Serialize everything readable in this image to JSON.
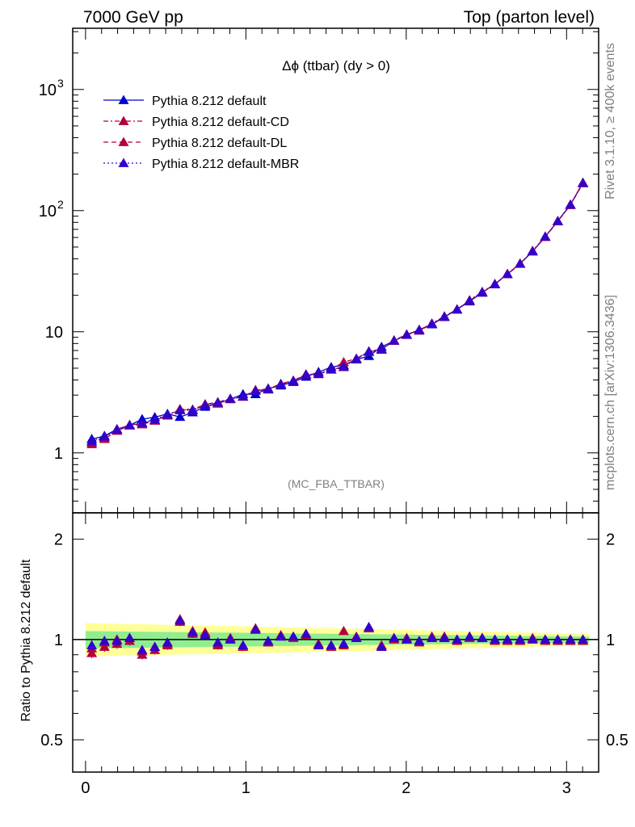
{
  "header": {
    "left": "7000 GeV pp",
    "right": "Top (parton level)"
  },
  "side_labels": {
    "rivet": "Rivet 3.1.10, ≥ 400k events",
    "mcplots": "mcplots.cern.ch [arXiv:1306.3436]"
  },
  "chart_data": [
    {
      "type": "line",
      "title": "Δϕ (ttbar) (dy > 0)",
      "watermark": "(MC_FBA_TTBAR)",
      "xlabel": "",
      "ylabel": "",
      "yscale": "log",
      "xlim": [
        -0.08,
        3.2
      ],
      "ylim": [
        0.32,
        3200
      ],
      "x_ticks": [
        "0",
        "1",
        "2",
        "3"
      ],
      "y_ticks": [
        {
          "value": 1,
          "label": "1"
        },
        {
          "value": 10,
          "label": "10"
        },
        {
          "value": 100,
          "label": "10",
          "sup": "2"
        },
        {
          "value": 1000,
          "label": "10",
          "sup": "3"
        }
      ],
      "legend_position": "top-left",
      "x": [
        0.039,
        0.118,
        0.196,
        0.275,
        0.353,
        0.432,
        0.511,
        0.589,
        0.668,
        0.746,
        0.825,
        0.903,
        0.982,
        1.06,
        1.139,
        1.218,
        1.296,
        1.375,
        1.453,
        1.532,
        1.61,
        1.689,
        1.767,
        1.846,
        1.924,
        2.003,
        2.081,
        2.16,
        2.238,
        2.317,
        2.395,
        2.474,
        2.553,
        2.631,
        2.71,
        2.788,
        2.867,
        2.945,
        3.024,
        3.102
      ],
      "series": [
        {
          "name": "Pythia 8.212 default",
          "color": "#0000cc",
          "style": "solid",
          "values": [
            1.3,
            1.38,
            1.57,
            1.69,
            1.9,
            1.97,
            2.1,
            1.98,
            2.16,
            2.4,
            2.55,
            2.78,
            3.05,
            3.05,
            3.4,
            3.6,
            3.85,
            4.25,
            4.65,
            5.1,
            5.3,
            5.9,
            6.3,
            7.5,
            8.4,
            9.4,
            10.4,
            11.5,
            13.2,
            15.3,
            17.8,
            21.0,
            24.8,
            30.0,
            36.5,
            46.0,
            61.0,
            82.0,
            112.0,
            170.0
          ]
        },
        {
          "name": "Pythia 8.212 default-CD",
          "color": "#b3003b",
          "style": "dashdot",
          "values": [
            1.22,
            1.34,
            1.56,
            1.7,
            1.75,
            1.86,
            2.05,
            2.3,
            2.28,
            2.52,
            2.62,
            2.8,
            2.92,
            3.3,
            3.37,
            3.72,
            3.95,
            4.45,
            4.5,
            4.9,
            5.6,
            6.0,
            6.9,
            7.2,
            8.5,
            9.5,
            10.3,
            11.7,
            13.4,
            15.3,
            18.2,
            21.3,
            24.7,
            30.0,
            36.5,
            46.5,
            61.0,
            82.0,
            112.0,
            170.0
          ]
        },
        {
          "name": "Pythia 8.212 default-DL",
          "color": "#b3003b",
          "style": "dashed",
          "values": [
            1.18,
            1.3,
            1.52,
            1.68,
            1.72,
            1.84,
            2.03,
            2.27,
            2.25,
            2.49,
            2.58,
            2.77,
            2.9,
            3.27,
            3.33,
            3.68,
            3.92,
            4.4,
            4.46,
            4.86,
            5.1,
            5.95,
            6.8,
            7.1,
            8.4,
            9.45,
            10.2,
            11.6,
            13.3,
            15.2,
            18.0,
            21.2,
            24.6,
            29.8,
            36.3,
            46.0,
            60.5,
            81.5,
            111.0,
            168.0
          ]
        },
        {
          "name": "Pythia 8.212 default-MBR",
          "color": "#3300cc",
          "style": "dotted",
          "values": [
            1.25,
            1.36,
            1.55,
            1.7,
            1.77,
            1.88,
            2.06,
            2.25,
            2.26,
            2.48,
            2.6,
            2.79,
            2.92,
            3.25,
            3.35,
            3.69,
            3.93,
            4.42,
            4.48,
            4.88,
            5.15,
            5.97,
            6.85,
            7.15,
            8.45,
            9.45,
            10.25,
            11.65,
            13.35,
            15.25,
            18.1,
            21.25,
            24.65,
            29.9,
            36.4,
            46.2,
            60.8,
            81.8,
            111.5,
            169.0
          ]
        }
      ]
    },
    {
      "type": "line",
      "title": "",
      "xlabel": "",
      "ylabel": "Ratio to Pythia 8.212 default",
      "yscale": "log",
      "xlim": [
        -0.08,
        3.2
      ],
      "ylim": [
        0.4,
        2.4
      ],
      "x_ticks": [
        "0",
        "1",
        "2",
        "3"
      ],
      "y_ticks": [
        {
          "value": 0.5,
          "label": "0.5"
        },
        {
          "value": 1,
          "label": "1"
        },
        {
          "value": 2,
          "label": "2"
        }
      ],
      "band_inner": {
        "color": "#90ee90",
        "lo": [
          0.94,
          0.96,
          0.98
        ],
        "hi": [
          1.06,
          1.04,
          1.02
        ]
      },
      "band_outer": {
        "color": "#ffff99",
        "lo": [
          0.89,
          0.92,
          0.96
        ],
        "hi": [
          1.12,
          1.08,
          1.04
        ]
      },
      "series": [
        {
          "name": "Pythia 8.212 default-CD",
          "color": "#b3003b",
          "values": [
            0.94,
            0.98,
            1.0,
            1.01,
            0.92,
            0.95,
            0.97,
            1.15,
            1.06,
            1.05,
            0.97,
            1.01,
            0.96,
            1.08,
            0.98,
            1.03,
            1.02,
            1.04,
            0.97,
            0.96,
            1.06,
            1.02,
            1.08,
            0.96,
            1.01,
            1.01,
            0.99,
            1.02,
            1.02,
            1.0,
            1.02,
            1.01,
            1.0,
            1.0,
            1.0,
            1.01,
            1.0,
            1.0,
            1.0,
            1.0
          ]
        },
        {
          "name": "Pythia 8.212 default-DL",
          "color": "#b3003b",
          "values": [
            0.91,
            0.95,
            0.97,
            0.99,
            0.9,
            0.93,
            0.96,
            1.13,
            1.04,
            1.04,
            0.96,
            1.0,
            0.95,
            1.07,
            0.98,
            1.02,
            1.01,
            1.03,
            0.96,
            0.95,
            0.96,
            1.01,
            1.08,
            0.95,
            1.0,
            1.0,
            0.98,
            1.01,
            1.01,
            0.99,
            1.01,
            1.01,
            0.99,
            0.99,
            0.99,
            1.0,
            0.99,
            0.99,
            0.99,
            0.99
          ]
        },
        {
          "name": "Pythia 8.212 default-MBR",
          "color": "#3300cc",
          "values": [
            0.96,
            0.99,
            0.99,
            1.01,
            0.93,
            0.95,
            0.98,
            1.14,
            1.05,
            1.03,
            0.98,
            1.0,
            0.96,
            1.07,
            0.99,
            1.02,
            1.02,
            1.04,
            0.96,
            0.96,
            0.97,
            1.01,
            1.09,
            0.95,
            1.01,
            1.0,
            0.99,
            1.01,
            1.01,
            1.0,
            1.02,
            1.01,
            1.0,
            1.0,
            1.0,
            1.0,
            1.0,
            1.0,
            1.0,
            1.0
          ]
        }
      ]
    }
  ]
}
